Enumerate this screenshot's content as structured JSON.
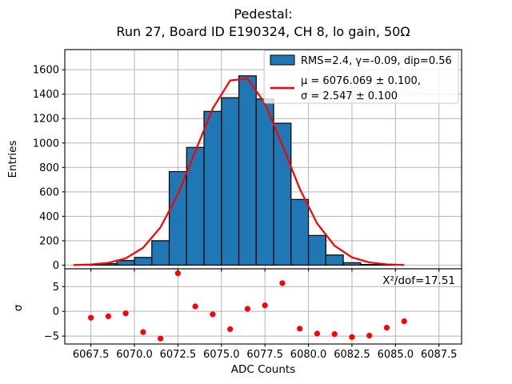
{
  "figure": {
    "title_line1": "Pedestal:",
    "title_line2": "Run 27, Board ID E190324, CH 8, lo gain, 50Ω"
  },
  "chart_data": [
    {
      "type": "bar",
      "role": "pedestal-histogram",
      "ylabel": "Entries",
      "bin_width": 1,
      "bin_centers": [
        6067.5,
        6068.5,
        6069.5,
        6070.5,
        6071.5,
        6072.5,
        6073.5,
        6074.5,
        6075.5,
        6076.5,
        6077.5,
        6078.5,
        6079.5,
        6080.5,
        6081.5,
        6082.5,
        6083.5,
        6084.5,
        6085.5
      ],
      "values": [
        3,
        12,
        38,
        63,
        200,
        766,
        964,
        1259,
        1371,
        1550,
        1360,
        1162,
        538,
        243,
        83,
        20,
        5,
        2,
        0
      ],
      "xlim": [
        6066.0,
        6088.8
      ],
      "ylim": [
        -30,
        1765
      ],
      "xticks": [
        6067.5,
        6070.0,
        6072.5,
        6075.0,
        6077.5,
        6080.0,
        6082.5,
        6085.0,
        6087.5
      ],
      "yticks": [
        0,
        200,
        400,
        600,
        800,
        1000,
        1200,
        1400,
        1600
      ],
      "ytick_labels": [
        "0",
        "200",
        "400",
        "600",
        "800",
        "1000",
        "1200",
        "1400",
        "1600"
      ],
      "grid": true,
      "bar_color": "#1f77b4",
      "bar_edge_color": "#000000",
      "legend": {
        "position": "upper right",
        "entries": [
          {
            "type": "patch",
            "color": "#1f77b4",
            "label": "RMS=2.4, γ=-0.09, dip=0.56"
          },
          {
            "type": "line",
            "color": "#ff0000",
            "label_line1": "μ = 6076.069 ± 0.100,",
            "label_line2": "σ = 2.547 ± 0.100"
          }
        ]
      },
      "fit_curve": {
        "shape": "gaussian",
        "mu": 6076.069,
        "sigma": 2.547,
        "amplitude": 1550,
        "color": "#ff0000",
        "sample_min": 6066.5,
        "sample_max": 6085.5,
        "sample_step": 1.0
      }
    },
    {
      "type": "scatter",
      "role": "fit-residuals",
      "ylabel": "σ",
      "xlabel": "ADC Counts",
      "x": [
        6067.5,
        6068.5,
        6069.5,
        6070.5,
        6071.5,
        6072.5,
        6073.5,
        6074.5,
        6075.5,
        6076.5,
        6077.5,
        6078.5,
        6079.5,
        6080.5,
        6081.5,
        6082.5,
        6083.5,
        6084.5,
        6085.5
      ],
      "y": [
        -1.3,
        -1.0,
        -0.4,
        -4.2,
        -5.5,
        7.7,
        1.0,
        -0.6,
        -3.6,
        0.5,
        1.2,
        5.7,
        -3.5,
        -4.5,
        -4.6,
        -5.2,
        -4.9,
        -3.3,
        -2.0
      ],
      "xlim": [
        6066.0,
        6088.8
      ],
      "ylim": [
        -6.6,
        8.6
      ],
      "yticks": [
        5,
        0,
        -5
      ],
      "ytick_labels": [
        "5",
        "0",
        "−5"
      ],
      "xtick_labels": [
        "6067.5",
        "6070.0",
        "6072.5",
        "6075.0",
        "6077.5",
        "6080.0",
        "6082.5",
        "6085.0",
        "6087.5"
      ],
      "dot_color": "#ff0000",
      "annotation": "Χ²/dof=17.51",
      "grid": true
    }
  ],
  "style": {
    "grid_color": "#b4b4b4",
    "spine_color": "#000000",
    "legend_border_color": "#cccccc",
    "legend_bg": "#ffffff"
  }
}
